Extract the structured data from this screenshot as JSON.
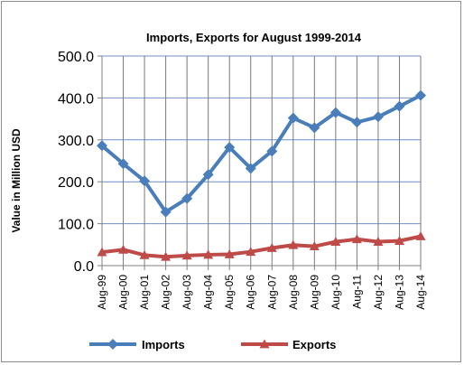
{
  "chart_data": {
    "type": "line",
    "title": "Imports, Exports for August 1999-2014",
    "xlabel": "",
    "ylabel": "Value in Million USD",
    "categories": [
      "Aug-99",
      "Aug-00",
      "Aug-01",
      "Aug-02",
      "Aug-03",
      "Aug-04",
      "Aug-05",
      "Aug-06",
      "Aug-07",
      "Aug-08",
      "Aug-09",
      "Aug-10",
      "Aug-11",
      "Aug-12",
      "Aug-13",
      "Aug-14"
    ],
    "y_ticks": [
      "0.0",
      "100.0",
      "200.0",
      "300.0",
      "400.0",
      "500.0"
    ],
    "ylim": [
      0,
      500
    ],
    "grid": "horizontal and vertical",
    "legend_position": "bottom",
    "series": [
      {
        "name": "Imports",
        "color": "#4a7ebb",
        "marker": "diamond",
        "values": [
          286,
          243,
          202,
          128,
          160,
          217,
          282,
          232,
          273,
          352,
          329,
          365,
          342,
          355,
          380,
          406
        ]
      },
      {
        "name": "Exports",
        "color": "#be4b48",
        "marker": "triangle",
        "values": [
          32,
          38,
          25,
          21,
          24,
          26,
          27,
          33,
          42,
          49,
          46,
          57,
          63,
          57,
          59,
          70
        ]
      }
    ]
  }
}
